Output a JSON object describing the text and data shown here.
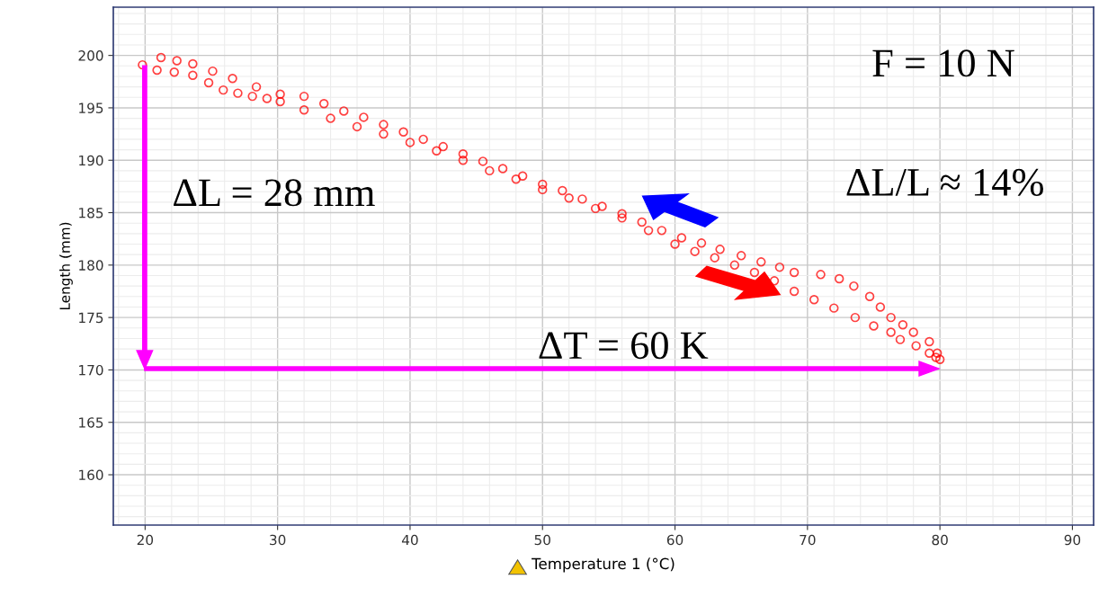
{
  "chart_data": {
    "type": "scatter",
    "xlabel": "Temperature 1 (°C)",
    "ylabel": "Length (mm)",
    "xlim": [
      17.6,
      91.6
    ],
    "ylim": [
      155.2,
      204.6
    ],
    "xticks": [
      20,
      30,
      40,
      50,
      60,
      70,
      80,
      90
    ],
    "yticks": [
      160,
      165,
      170,
      175,
      180,
      185,
      190,
      195,
      200
    ],
    "grid": true,
    "marker": "circle",
    "legend": false,
    "annotations": [
      "F = 10 N",
      "ΔL = 28 mm",
      "ΔL/L ≈ 14%",
      "ΔT = 60 K"
    ],
    "series": [
      {
        "color": "#ff0000",
        "x": [
          19.8,
          20.9,
          22.2,
          23.6,
          24.8,
          25.9,
          27.0,
          28.1,
          29.2,
          30.2,
          32.0,
          34.0,
          36.0,
          38.0,
          40.0,
          42.0,
          44.0,
          46.0,
          48.0,
          50.0,
          52.0,
          54.0,
          56.0,
          58.0,
          60.0,
          61.5,
          63.0,
          64.5,
          66.0,
          67.5,
          69.0,
          70.5,
          72.0,
          73.6,
          75.0,
          76.3,
          77.0,
          78.2,
          79.2,
          79.7,
          80.0,
          79.8,
          79.2,
          78.0,
          77.2,
          76.3,
          75.5,
          74.7,
          73.5,
          72.4,
          71.0,
          69.0,
          67.9,
          66.5,
          65.0,
          63.4,
          62.0,
          60.5,
          59.0,
          57.5,
          56.0,
          54.5,
          53.0,
          51.5,
          50.0,
          48.5,
          47.0,
          45.5,
          44.0,
          42.5,
          41.0,
          39.5,
          38.0,
          36.5,
          35.0,
          33.5,
          32.0,
          30.2,
          28.4,
          26.6,
          25.1,
          23.6,
          22.4,
          21.2
        ],
        "values": [
          199.1,
          198.6,
          198.4,
          198.1,
          197.4,
          196.7,
          196.4,
          196.1,
          195.9,
          195.6,
          194.8,
          194.0,
          193.2,
          192.5,
          191.7,
          190.9,
          190.0,
          189.0,
          188.2,
          187.2,
          186.4,
          185.4,
          184.5,
          183.3,
          182.0,
          181.3,
          180.7,
          180.0,
          179.3,
          178.5,
          177.5,
          176.7,
          175.9,
          175.0,
          174.2,
          173.6,
          172.9,
          172.3,
          171.6,
          171.2,
          171.0,
          171.6,
          172.7,
          173.6,
          174.3,
          175.0,
          176.0,
          177.0,
          178.0,
          178.7,
          179.1,
          179.3,
          179.8,
          180.3,
          180.9,
          181.5,
          182.1,
          182.6,
          183.3,
          184.1,
          184.9,
          185.6,
          186.3,
          187.1,
          187.7,
          188.5,
          189.2,
          189.9,
          190.6,
          191.3,
          192.0,
          192.7,
          193.4,
          194.1,
          194.7,
          195.4,
          196.1,
          196.3,
          197.0,
          197.8,
          198.5,
          199.2,
          199.5,
          199.8
        ]
      }
    ]
  }
}
